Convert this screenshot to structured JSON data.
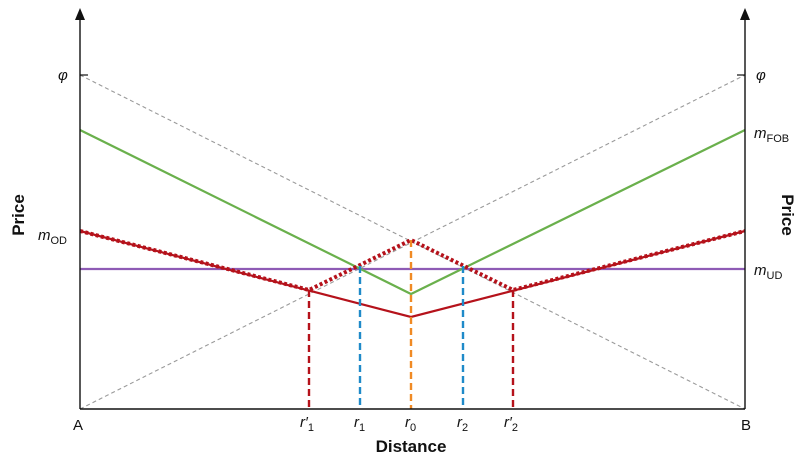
{
  "labels": {
    "a": "A",
    "b": "B",
    "x_axis": "Distance",
    "y_axis_left": "Price",
    "y_axis_right": "Price",
    "phi_left": "φ",
    "phi_right": "φ",
    "m_od": {
      "base": "m",
      "sub": "OD"
    },
    "m_fob": {
      "base": "m",
      "sub": "FOB"
    },
    "m_ud": {
      "base": "m",
      "sub": "UD"
    },
    "r1p": {
      "base": "r′",
      "sub": "1"
    },
    "r1": {
      "base": "r",
      "sub": "1"
    },
    "r0": {
      "base": "r",
      "sub": "0"
    },
    "r2": {
      "base": "r",
      "sub": "2"
    },
    "r2p": {
      "base": "r′",
      "sub": "2"
    }
  },
  "colors": {
    "axis": "#111111",
    "guide": "#9a9a9a",
    "fob": "#6ab04c",
    "od": "#b5121b",
    "ud": "#8e5bb5",
    "r1": "#1f8ac9",
    "r0": "#f08a24",
    "rprime": "#b5121b"
  }
}
